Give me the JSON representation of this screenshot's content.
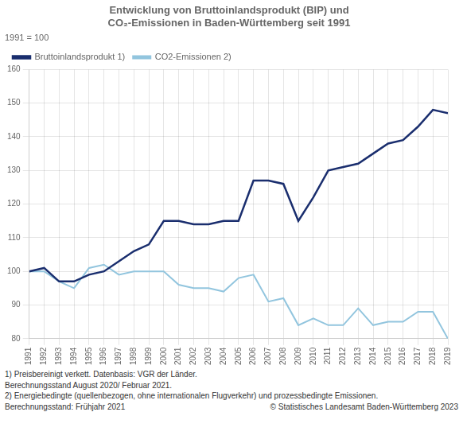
{
  "chart_data": {
    "type": "line",
    "title": [
      "Entwicklung von Bruttoinlandsprodukt (BIP) und",
      "CO₂-Emissionen in Baden-Württemberg seit 1991"
    ],
    "ylabel": "1991 = 100",
    "x": [
      1991,
      1992,
      1993,
      1994,
      1995,
      1996,
      1997,
      1998,
      1999,
      2000,
      2001,
      2002,
      2003,
      2004,
      2005,
      2006,
      2007,
      2008,
      2009,
      2010,
      2011,
      2012,
      2013,
      2014,
      2015,
      2016,
      2017,
      2018,
      2019
    ],
    "series": [
      {
        "name": "Bruttoinlandsprodukt 1)",
        "color": "#1a2e6e",
        "values": [
          100,
          101,
          97,
          97,
          99,
          100,
          103,
          106,
          108,
          115,
          115,
          114,
          114,
          115,
          115,
          127,
          127,
          126,
          115,
          122,
          130,
          131,
          132,
          135,
          138,
          139,
          143,
          148,
          147
        ]
      },
      {
        "name": "CO2-Emissionen 2)",
        "color": "#92c5de",
        "values": [
          100,
          100,
          97,
          95,
          101,
          102,
          99,
          100,
          100,
          100,
          96,
          95,
          95,
          94,
          98,
          99,
          91,
          92,
          84,
          86,
          84,
          84,
          89,
          84,
          85,
          85,
          88,
          88,
          80
        ]
      }
    ],
    "xlim": [
      1991,
      2019
    ],
    "xticks": [
      1991,
      1992,
      1993,
      1994,
      1995,
      1996,
      1997,
      1998,
      1999,
      2000,
      2001,
      2002,
      2003,
      2004,
      2005,
      2006,
      2007,
      2008,
      2009,
      2010,
      2011,
      2012,
      2013,
      2014,
      2015,
      2016,
      2017,
      2018,
      2019
    ],
    "ylim": [
      80,
      160
    ],
    "yticks": [
      80,
      90,
      100,
      110,
      120,
      130,
      140,
      150,
      160
    ],
    "grid": true,
    "legend": "upper left",
    "annotations": [
      "1) Preisbereinigt verkett. Datenbasis: VGR der Länder.",
      "Berechnungsstand  August 2020/ Februar 2021.",
      "2) Energiebedingte (quellenbezogen, ohne internationalen Flugverkehr) und prozessbedingte Emissionen.",
      "Berechnungsstand: Frühjahr 2021",
      "© Statistisches Landesamt Baden-Württemberg 2023"
    ]
  }
}
